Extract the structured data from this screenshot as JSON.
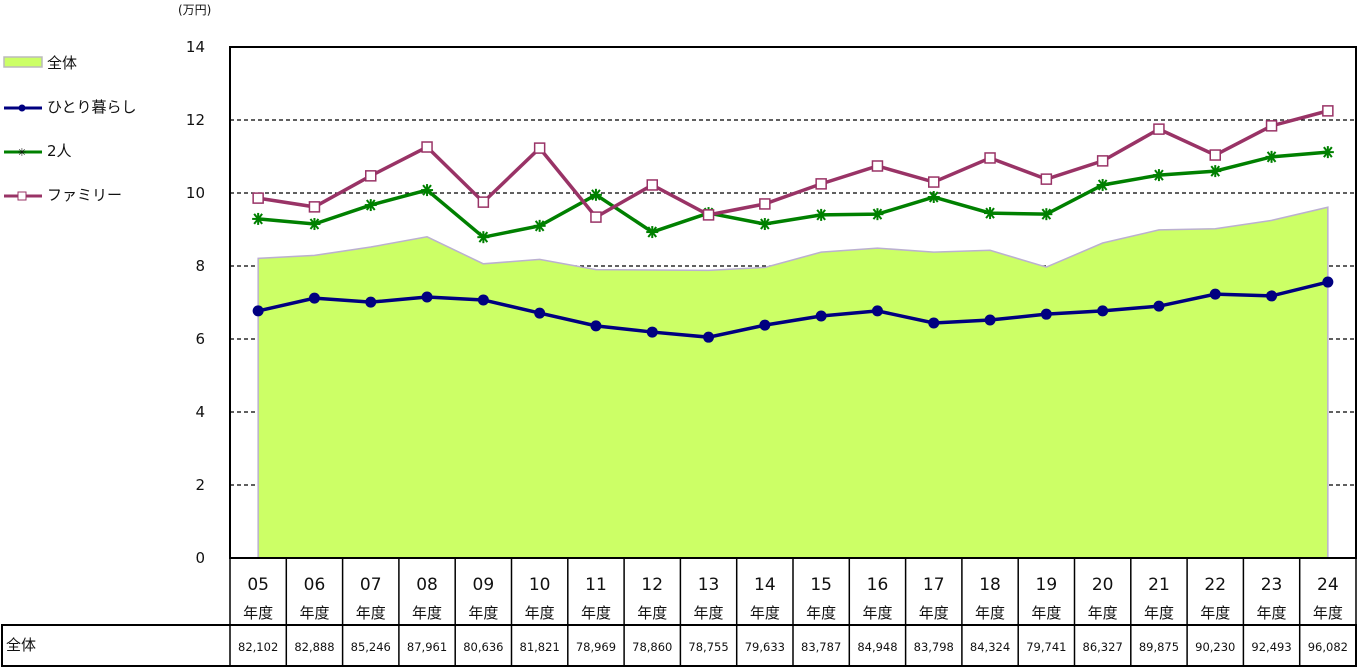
{
  "chart_data": {
    "type": "line",
    "unit_label": "(万円)",
    "ylim": [
      0,
      14
    ],
    "yticks": [
      0,
      2,
      4,
      6,
      8,
      10,
      12,
      14
    ],
    "grid": "dashed horizontal",
    "legend_position": "left",
    "categories": [
      "05",
      "06",
      "07",
      "08",
      "09",
      "10",
      "11",
      "12",
      "13",
      "14",
      "15",
      "16",
      "17",
      "18",
      "19",
      "20",
      "21",
      "22",
      "23",
      "24"
    ],
    "category_suffix": "年度",
    "table": {
      "row_label": "全体",
      "values": [
        "82,102",
        "82,888",
        "85,246",
        "87,961",
        "80,636",
        "81,821",
        "78,969",
        "78,860",
        "78,755",
        "79,633",
        "83,787",
        "84,948",
        "83,798",
        "84,324",
        "79,741",
        "86,327",
        "89,875",
        "90,230",
        "92,493",
        "96,082"
      ]
    },
    "series": [
      {
        "name": "全体",
        "kind": "area",
        "color": "#ccff66",
        "values": [
          8.21,
          8.29,
          8.52,
          8.8,
          8.06,
          8.18,
          7.9,
          7.89,
          7.88,
          7.96,
          8.38,
          8.49,
          8.38,
          8.43,
          7.97,
          8.63,
          8.99,
          9.02,
          9.25,
          9.61
        ]
      },
      {
        "name": "ひとり暮らし",
        "kind": "line",
        "marker": "circle",
        "color": "#000080",
        "values": [
          6.77,
          7.12,
          7.01,
          7.15,
          7.07,
          6.71,
          6.36,
          6.19,
          6.05,
          6.38,
          6.63,
          6.77,
          6.44,
          6.52,
          6.68,
          6.77,
          6.9,
          7.23,
          7.18,
          7.56
        ]
      },
      {
        "name": "2人",
        "kind": "line",
        "marker": "star",
        "color": "#008000",
        "values": [
          9.29,
          9.15,
          9.67,
          10.08,
          8.79,
          9.1,
          9.95,
          8.93,
          9.45,
          9.15,
          9.4,
          9.42,
          9.89,
          9.45,
          9.42,
          10.22,
          10.49,
          10.6,
          10.99,
          11.12
        ]
      },
      {
        "name": "ファミリー",
        "kind": "line",
        "marker": "square",
        "color": "#993366",
        "values": [
          9.86,
          9.62,
          10.47,
          11.26,
          9.75,
          11.23,
          9.34,
          10.22,
          9.4,
          9.7,
          10.25,
          10.74,
          10.3,
          10.96,
          10.38,
          10.88,
          11.75,
          11.04,
          11.84,
          12.25
        ]
      }
    ]
  }
}
